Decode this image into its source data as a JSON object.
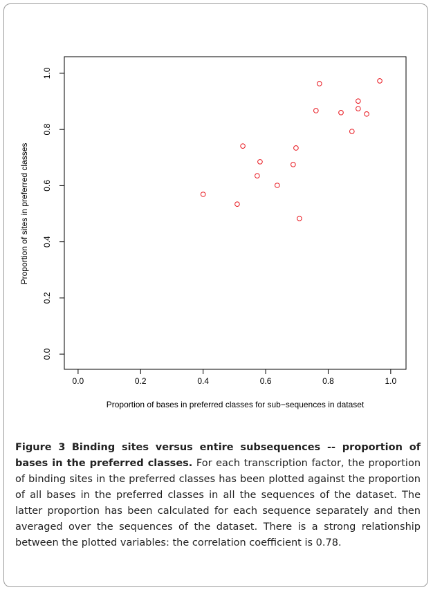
{
  "chart_data": {
    "type": "scatter",
    "xlabel": "Proportion of bases in preferred classes for sub−sequences in dataset",
    "ylabel": "Proportion of sites in preferred classes",
    "color": "#e8141c",
    "x": [
      0.4,
      0.527,
      0.582,
      0.573,
      0.509,
      0.637,
      0.697,
      0.688,
      0.708,
      0.761,
      0.772,
      0.841,
      0.876,
      0.896,
      0.896,
      0.923,
      0.965
    ],
    "values": [
      0.569,
      0.741,
      0.685,
      0.635,
      0.534,
      0.601,
      0.734,
      0.675,
      0.483,
      0.867,
      0.963,
      0.86,
      0.793,
      0.901,
      0.874,
      0.855,
      0.973
    ],
    "xlim": [
      -0.044,
      1.049
    ],
    "ylim": [
      -0.054,
      1.059
    ],
    "xticks": [
      {
        "value": 0,
        "label": "0.0"
      },
      0.2,
      0.4,
      0.6,
      0.8,
      {
        "value": 1,
        "label": "1.0"
      }
    ],
    "yticks": [
      {
        "value": 0,
        "label": "0.0"
      },
      0.2,
      0.4,
      0.6,
      0.8,
      {
        "value": 1,
        "label": "1.0"
      }
    ]
  },
  "caption": {
    "label": "Figure 3",
    "title": "Binding sites versus entire subsequences -- proportion of bases in the preferred classes",
    "text": "For each transcription factor, the proportion of binding sites in the preferred classes has been plotted against the proportion of all bases in the preferred classes in all the sequences of the dataset. The latter proportion has been calculated for each sequence separately and then averaged over the sequences of the dataset. There is a strong relationship between the plotted variables: the correlation coefficient is 0.78."
  }
}
